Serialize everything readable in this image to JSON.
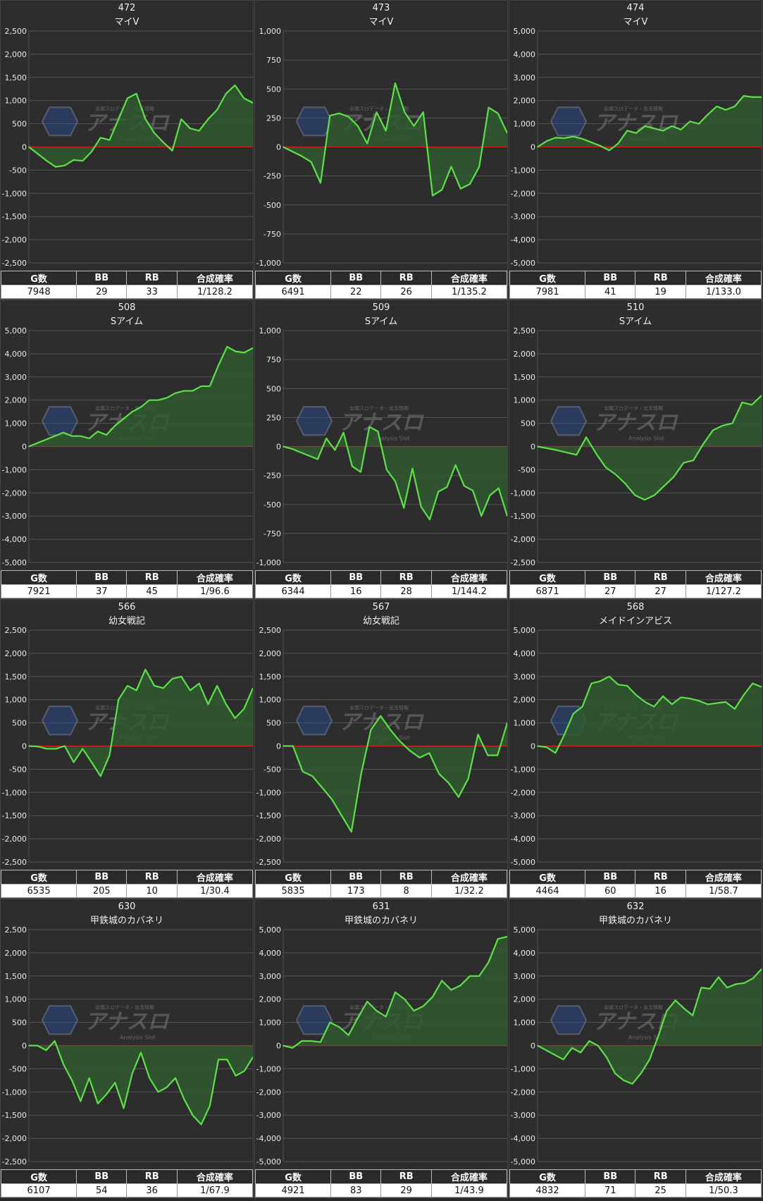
{
  "headers": [
    "G数",
    "BB",
    "RB",
    "合成確率"
  ],
  "colors": {
    "line": "#5ee04a",
    "fill": "#2f5a2f",
    "zero": "#cc2222",
    "grid": "#555555",
    "bg": "#2d2d2d"
  },
  "watermark": {
    "main": "アナスロ",
    "sub": "Analysis Slot",
    "top": "全国スロデータ・出玉情報"
  },
  "panels": [
    {
      "id": "472",
      "name": "マイV",
      "stats": [
        "7948",
        "29",
        "33",
        "1/128.2"
      ],
      "chart_data": {
        "type": "area",
        "yticks": [
          2500,
          2000,
          1500,
          1000,
          500,
          0,
          -500,
          -1000,
          -1500,
          -2000,
          -2500
        ],
        "ylim": [
          -2500,
          2500
        ],
        "values": [
          0,
          -150,
          -300,
          -430,
          -400,
          -280,
          -300,
          -100,
          200,
          150,
          600,
          1050,
          1150,
          600,
          300,
          100,
          -80,
          600,
          400,
          350,
          600,
          800,
          1150,
          1330,
          1050,
          950
        ]
      }
    },
    {
      "id": "473",
      "name": "マイV",
      "stats": [
        "6491",
        "22",
        "26",
        "1/135.2"
      ],
      "chart_data": {
        "type": "area",
        "yticks": [
          1000,
          750,
          500,
          250,
          0,
          -250,
          -500,
          -750,
          -1000
        ],
        "ylim": [
          -1000,
          1000
        ],
        "values": [
          0,
          -40,
          -80,
          -130,
          -310,
          270,
          290,
          260,
          180,
          30,
          300,
          140,
          550,
          300,
          180,
          300,
          -420,
          -370,
          -170,
          -360,
          -320,
          -170,
          340,
          290,
          120
        ]
      }
    },
    {
      "id": "474",
      "name": "マイV",
      "stats": [
        "7981",
        "41",
        "19",
        "1/133.0"
      ],
      "chart_data": {
        "type": "area",
        "yticks": [
          5000,
          4000,
          3000,
          2000,
          1000,
          0,
          -1000,
          -2000,
          -3000,
          -4000,
          -5000
        ],
        "ylim": [
          -5000,
          5000
        ],
        "values": [
          0,
          250,
          400,
          380,
          450,
          350,
          200,
          50,
          -150,
          150,
          700,
          600,
          900,
          800,
          700,
          900,
          750,
          1100,
          1000,
          1400,
          1750,
          1600,
          1750,
          2200,
          2150,
          2150
        ]
      }
    },
    {
      "id": "508",
      "name": "Sアイム",
      "stats": [
        "7921",
        "37",
        "45",
        "1/96.6"
      ],
      "chart_data": {
        "type": "area",
        "yticks": [
          5000,
          4000,
          3000,
          2000,
          1000,
          0,
          -1000,
          -2000,
          -3000,
          -4000,
          -5000
        ],
        "ylim": [
          -5000,
          5000
        ],
        "values": [
          0,
          150,
          300,
          450,
          600,
          450,
          450,
          350,
          650,
          500,
          900,
          1200,
          1500,
          1700,
          2000,
          2000,
          2100,
          2300,
          2400,
          2400,
          2600,
          2600,
          3500,
          4300,
          4100,
          4050,
          4250
        ]
      }
    },
    {
      "id": "509",
      "name": "Sアイム",
      "stats": [
        "6344",
        "16",
        "28",
        "1/144.2"
      ],
      "chart_data": {
        "type": "area",
        "yticks": [
          1000,
          750,
          500,
          250,
          0,
          -250,
          -500,
          -750,
          -1000
        ],
        "ylim": [
          -1000,
          1000
        ],
        "values": [
          0,
          -20,
          -50,
          -80,
          -110,
          70,
          -30,
          120,
          -170,
          -220,
          170,
          130,
          -200,
          -300,
          -530,
          -190,
          -520,
          -630,
          -390,
          -350,
          -160,
          -340,
          -380,
          -600,
          -420,
          -360,
          -600
        ]
      }
    },
    {
      "id": "510",
      "name": "Sアイム",
      "stats": [
        "6871",
        "27",
        "27",
        "1/127.2"
      ],
      "chart_data": {
        "type": "area",
        "yticks": [
          2500,
          2000,
          1500,
          1000,
          500,
          0,
          -500,
          -1000,
          -1500,
          -2000,
          -2500
        ],
        "ylim": [
          -2500,
          2500
        ],
        "values": [
          0,
          -40,
          -80,
          -130,
          -180,
          200,
          -150,
          -450,
          -600,
          -800,
          -1050,
          -1150,
          -1050,
          -850,
          -650,
          -350,
          -300,
          50,
          350,
          450,
          500,
          950,
          900,
          1100
        ]
      }
    },
    {
      "id": "566",
      "name": "幼女戦記",
      "stats": [
        "6535",
        "205",
        "10",
        "1/30.4"
      ],
      "chart_data": {
        "type": "area",
        "yticks": [
          2500,
          2000,
          1500,
          1000,
          500,
          0,
          -500,
          -1000,
          -1500,
          -2000,
          -2500
        ],
        "ylim": [
          -2500,
          2500
        ],
        "values": [
          0,
          -10,
          -60,
          -60,
          0,
          -350,
          -60,
          -350,
          -650,
          -200,
          1000,
          1300,
          1200,
          1650,
          1300,
          1250,
          1450,
          1500,
          1200,
          1350,
          900,
          1300,
          900,
          600,
          800,
          1250
        ]
      }
    },
    {
      "id": "567",
      "name": "幼女戦記",
      "stats": [
        "5835",
        "173",
        "8",
        "1/32.2"
      ],
      "chart_data": {
        "type": "area",
        "yticks": [
          2500,
          2000,
          1500,
          1000,
          500,
          0,
          -500,
          -1000,
          -1500,
          -2000,
          -2500
        ],
        "ylim": [
          -2500,
          2500
        ],
        "values": [
          0,
          0,
          -550,
          -650,
          -900,
          -1150,
          -1500,
          -1850,
          -600,
          350,
          650,
          350,
          100,
          -100,
          -250,
          -150,
          -600,
          -800,
          -1100,
          -700,
          250,
          -200,
          -200,
          500
        ]
      }
    },
    {
      "id": "568",
      "name": "メイドインアビス",
      "stats": [
        "4464",
        "60",
        "16",
        "1/58.7"
      ],
      "chart_data": {
        "type": "area",
        "yticks": [
          5000,
          4000,
          3000,
          2000,
          1000,
          0,
          -1000,
          -2000,
          -3000,
          -4000,
          -5000
        ],
        "ylim": [
          -5000,
          5000
        ],
        "values": [
          0,
          -50,
          -300,
          500,
          1400,
          1700,
          2700,
          2800,
          3000,
          2650,
          2600,
          2200,
          1900,
          1700,
          2150,
          1800,
          2100,
          2050,
          1950,
          1800,
          1850,
          1900,
          1600,
          2200,
          2700,
          2550
        ]
      }
    },
    {
      "id": "630",
      "name": "甲鉄城のカバネリ",
      "stats": [
        "6107",
        "54",
        "36",
        "1/67.9"
      ],
      "chart_data": {
        "type": "area",
        "yticks": [
          2500,
          2000,
          1500,
          1000,
          500,
          0,
          -500,
          -1000,
          -1500,
          -2000,
          -2500
        ],
        "ylim": [
          -2500,
          2500
        ],
        "values": [
          0,
          0,
          -100,
          100,
          -400,
          -750,
          -1200,
          -700,
          -1250,
          -1050,
          -800,
          -1350,
          -600,
          -150,
          -700,
          -1000,
          -900,
          -700,
          -1150,
          -1500,
          -1700,
          -1300,
          -300,
          -300,
          -650,
          -550,
          -250
        ]
      }
    },
    {
      "id": "631",
      "name": "甲鉄城のカバネリ",
      "stats": [
        "4921",
        "83",
        "29",
        "1/43.9"
      ],
      "chart_data": {
        "type": "area",
        "yticks": [
          5000,
          4000,
          3000,
          2000,
          1000,
          0,
          -1000,
          -2000,
          -3000,
          -4000,
          -5000
        ],
        "ylim": [
          -5000,
          5000
        ],
        "values": [
          0,
          -100,
          200,
          200,
          150,
          1000,
          800,
          450,
          1200,
          1900,
          1500,
          1250,
          2300,
          2000,
          1500,
          1700,
          2100,
          2800,
          2400,
          2600,
          3000,
          3000,
          3600,
          4600,
          4700
        ]
      }
    },
    {
      "id": "632",
      "name": "甲鉄城のカバネリ",
      "stats": [
        "4832",
        "71",
        "25",
        "1/50.3"
      ],
      "chart_data": {
        "type": "area",
        "yticks": [
          5000,
          4000,
          3000,
          2000,
          1000,
          0,
          -1000,
          -2000,
          -3000,
          -4000,
          -5000
        ],
        "ylim": [
          -5000,
          5000
        ],
        "values": [
          0,
          -200,
          -400,
          -600,
          -100,
          -300,
          200,
          0,
          -500,
          -1200,
          -1500,
          -1650,
          -1200,
          -600,
          400,
          1500,
          1950,
          1600,
          1300,
          2500,
          2450,
          2950,
          2500,
          2650,
          2700,
          2900,
          3300
        ]
      }
    }
  ]
}
